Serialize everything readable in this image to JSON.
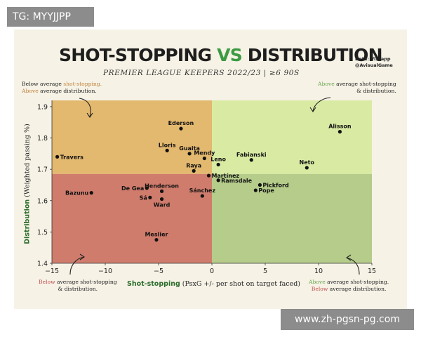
{
  "watermark_top": "TG: MYYJJPP",
  "watermark_bottom": "www.zh-pgsn-pg.com",
  "title": {
    "part1": "SHOT-STOPPING ",
    "vs": "VS",
    "part2": " DISTRIBUTION"
  },
  "credit": {
    "line1": "Data: Vizzapp",
    "line2": "@AvisualGame"
  },
  "subtitle": "PREMIER LEAGUE KEEPERS 2022/23  |  ≥6 90S",
  "notes": {
    "top_left": {
      "line1_pre": "Below average ",
      "line1_hl": "shot-stopping.",
      "line2_pre": "Above",
      "line2_hl": " average distribution."
    },
    "top_right": {
      "line1_pre": "Above",
      "line1_hl": " average shot-stopping",
      "line2_pre": "& distribution.",
      "line2_hl": ""
    },
    "bottom_left": {
      "line1_pre": "Below",
      "line1_hl": " average shot-stopping",
      "line2_pre": "& distribution.",
      "line2_hl": ""
    },
    "bottom_right": {
      "line1_pre": "Above",
      "line1_hl": " average shot-stopping.",
      "line2_pre": "Below",
      "line2_hl": " average distribution."
    }
  },
  "colors": {
    "top_left": "#e3b86f",
    "top_right": "#d9eba3",
    "bottom_left": "#cf7c6c",
    "bottom_right": "#b5cc8a",
    "point": "#111111"
  },
  "chart_data": {
    "type": "scatter",
    "title": "SHOT-STOPPING VS DISTRIBUTION",
    "subtitle": "PREMIER LEAGUE KEEPERS 2022/23 | ≥6 90S",
    "xlabel_bold": "Shot-stopping",
    "xlabel_rest": " (PsxG +/- per shot on target faced)",
    "ylabel_bold": "Distribution",
    "ylabel_rest": " (Weighted passing %)",
    "xlim": [
      -15,
      15
    ],
    "ylim": [
      14.0,
      19.2
    ],
    "x_ticks": [
      -15,
      -10,
      -5,
      0,
      5,
      10,
      15
    ],
    "x_tick_labels": [
      "−15",
      "−10",
      "−5",
      "0",
      "5",
      "10",
      "15"
    ],
    "y_ticks": [
      14,
      15,
      16,
      17,
      18,
      19
    ],
    "y_tick_labels": [
      "1.4",
      "1.5",
      "1.6",
      "1.7",
      "1.8",
      "1.9"
    ],
    "quadrant_split": {
      "x": 0,
      "y": 16.85
    },
    "points": [
      {
        "name": "Ederson",
        "x": -2.9,
        "y": 18.3,
        "label_pos": "above"
      },
      {
        "name": "Alisson",
        "x": 12.0,
        "y": 18.2,
        "label_pos": "above"
      },
      {
        "name": "Travers",
        "x": -14.5,
        "y": 17.4,
        "label_pos": "right"
      },
      {
        "name": "Lloris",
        "x": -4.2,
        "y": 17.6,
        "label_pos": "above"
      },
      {
        "name": "Guaita",
        "x": -2.1,
        "y": 17.5,
        "label_pos": "above"
      },
      {
        "name": "Mendy",
        "x": -0.7,
        "y": 17.35,
        "label_pos": "above"
      },
      {
        "name": "Fabianski",
        "x": 3.7,
        "y": 17.3,
        "label_pos": "above"
      },
      {
        "name": "Leno",
        "x": 0.6,
        "y": 17.15,
        "label_pos": "above"
      },
      {
        "name": "Neto",
        "x": 8.9,
        "y": 17.05,
        "label_pos": "above"
      },
      {
        "name": "Raya",
        "x": -1.7,
        "y": 16.95,
        "label_pos": "above"
      },
      {
        "name": "Martínez",
        "x": -0.3,
        "y": 16.8,
        "label_pos": "right"
      },
      {
        "name": "Ramsdale",
        "x": 0.6,
        "y": 16.65,
        "label_pos": "right"
      },
      {
        "name": "Pickford",
        "x": 4.5,
        "y": 16.5,
        "label_pos": "right"
      },
      {
        "name": "Pope",
        "x": 4.1,
        "y": 16.33,
        "label_pos": "right"
      },
      {
        "name": "De Gea",
        "x": -6.1,
        "y": 16.4,
        "label_pos": "left"
      },
      {
        "name": "Henderson",
        "x": -4.7,
        "y": 16.3,
        "label_pos": "above"
      },
      {
        "name": "Sánchez",
        "x": -0.9,
        "y": 16.15,
        "label_pos": "above"
      },
      {
        "name": "Bazunu",
        "x": -11.3,
        "y": 16.25,
        "label_pos": "left"
      },
      {
        "name": "Sá",
        "x": -5.8,
        "y": 16.1,
        "label_pos": "left"
      },
      {
        "name": "Ward",
        "x": -4.7,
        "y": 16.05,
        "label_pos": "below"
      },
      {
        "name": "Meslier",
        "x": -5.2,
        "y": 14.75,
        "label_pos": "above"
      }
    ]
  }
}
